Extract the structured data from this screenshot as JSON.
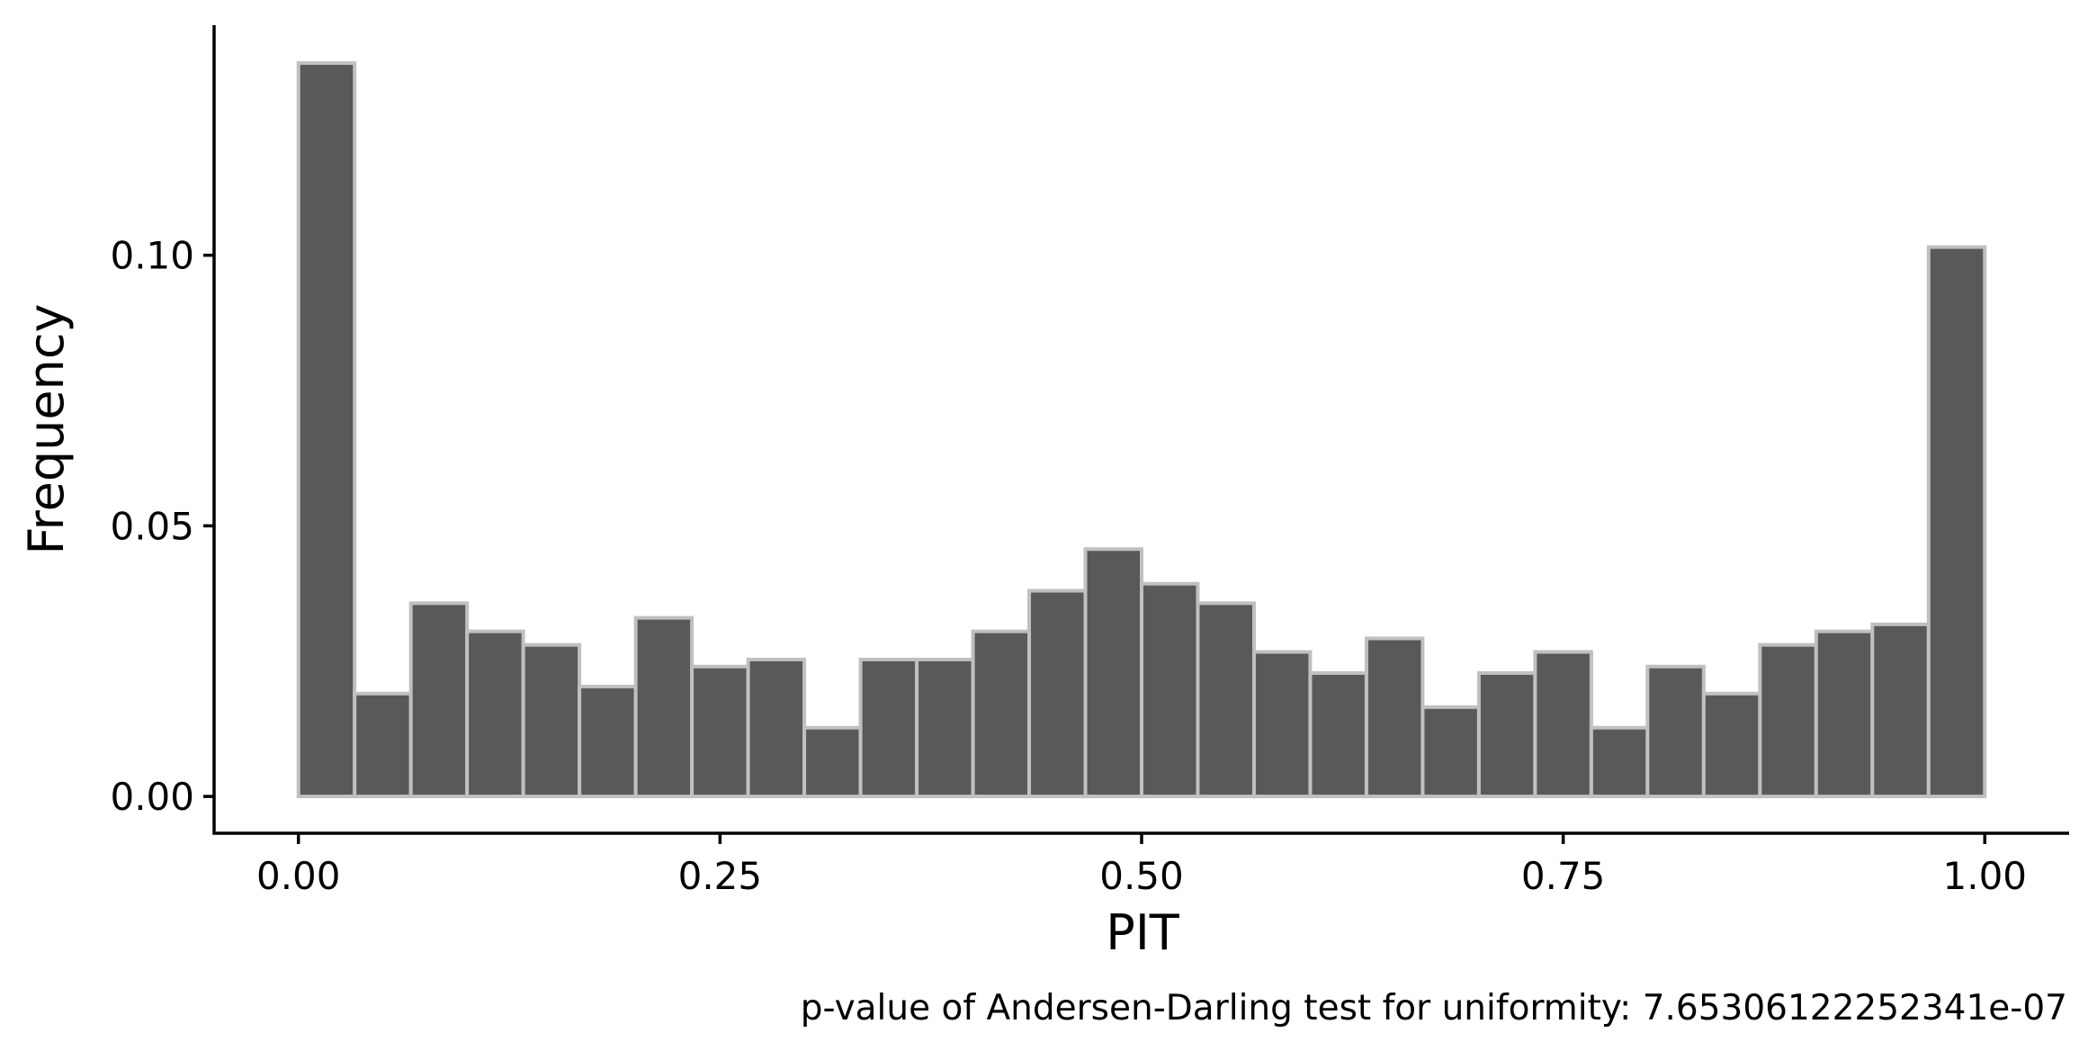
{
  "chart_data": {
    "type": "bar",
    "subtype": "histogram",
    "xlabel": "PIT",
    "ylabel": "Frequency",
    "caption": "p-value of Andersen-Darling test for uniformity: 7.65306122252341e-07",
    "xlim": [
      -0.05,
      1.05
    ],
    "ylim": [
      -0.0068,
      0.1425
    ],
    "xticks": [
      0.0,
      0.25,
      0.5,
      0.75,
      1.0
    ],
    "xtick_labels": [
      "0.00",
      "0.25",
      "0.50",
      "0.75",
      "1.00"
    ],
    "yticks": [
      0.0,
      0.05,
      0.1
    ],
    "ytick_labels": [
      "0.00",
      "0.05",
      "0.10"
    ],
    "bin_edges": [
      0.0,
      0.03333,
      0.06667,
      0.1,
      0.13333,
      0.16667,
      0.2,
      0.23333,
      0.26667,
      0.3,
      0.33333,
      0.36667,
      0.4,
      0.43333,
      0.46667,
      0.5,
      0.53333,
      0.56667,
      0.6,
      0.63333,
      0.66667,
      0.7,
      0.73333,
      0.76667,
      0.8,
      0.83333,
      0.86667,
      0.9,
      0.93333,
      0.96667,
      1.0
    ],
    "values": [
      0.1355,
      0.019,
      0.0357,
      0.0305,
      0.028,
      0.0203,
      0.033,
      0.024,
      0.0253,
      0.0127,
      0.0253,
      0.0253,
      0.0305,
      0.038,
      0.0457,
      0.0393,
      0.0357,
      0.0267,
      0.0228,
      0.0292,
      0.0165,
      0.0228,
      0.0267,
      0.0127,
      0.024,
      0.019,
      0.028,
      0.0305,
      0.0318,
      0.1015
    ],
    "bar_color": "#595959",
    "edge_color": "#c0c0c0",
    "grid": false,
    "legend": "none"
  }
}
